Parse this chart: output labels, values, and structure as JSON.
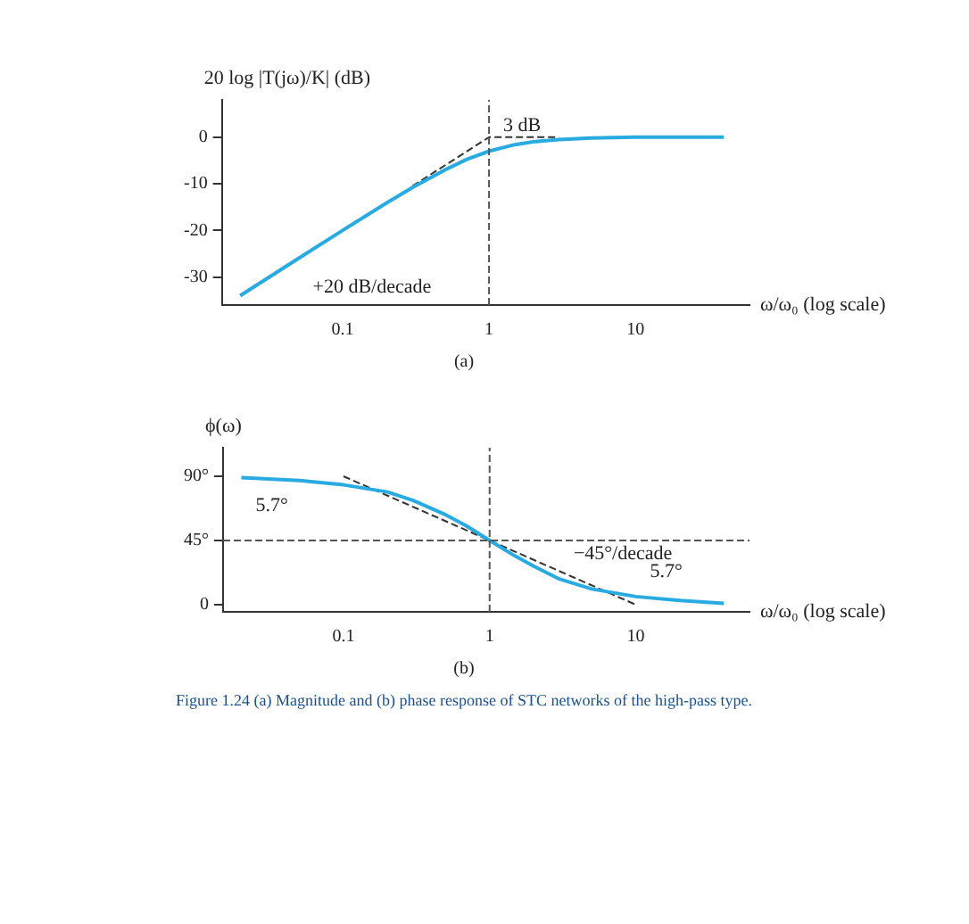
{
  "chart_data": [
    {
      "type": "line",
      "ylabel": "20 log |T(jω)/K| (dB)",
      "xlabel": "ω/ω₀ (log scale)",
      "log": "x",
      "xlim": [
        0.015,
        60
      ],
      "xticks": [
        0.1,
        1,
        10
      ],
      "ylim": [
        -36,
        8
      ],
      "yticks": [
        0,
        -10,
        -20,
        -30
      ],
      "grid": false,
      "legend": false,
      "marker": "none",
      "series": [
        {
          "color": "#29abe2",
          "x": [
            0.02,
            0.05,
            0.1,
            0.2,
            0.3,
            0.5,
            0.7,
            1,
            1.5,
            2,
            3,
            5,
            10,
            20,
            40
          ],
          "values": [
            -34,
            -26,
            -20,
            -14.1,
            -10.8,
            -7,
            -4.8,
            -3,
            -1.6,
            -1,
            -0.5,
            -0.2,
            0,
            0,
            0
          ]
        },
        {
          "color": "#333333",
          "line_style": "dashed",
          "x": [
            0.3,
            1,
            3
          ],
          "values": [
            -10.5,
            0,
            0
          ]
        }
      ],
      "ref_lines": [
        {
          "axis": "x",
          "value": 1,
          "line_style": "dashed",
          "color": "#555555"
        }
      ],
      "annotations": [
        {
          "text": "3 dB",
          "x": 1,
          "y": -3
        },
        {
          "text": "+20 dB/decade",
          "x": 0.05,
          "y": -26
        },
        "(a)"
      ]
    },
    {
      "type": "line",
      "ylabel": "ϕ(ω)",
      "xlabel": "ω/ω₀ (log scale)",
      "log": "x",
      "xlim": [
        0.015,
        60
      ],
      "xticks": [
        0.1,
        1,
        10
      ],
      "ylim": [
        -5,
        110
      ],
      "yticks": [
        0,
        {
          "value": 45,
          "label": "45°"
        },
        {
          "value": 90,
          "label": "90°"
        }
      ],
      "grid": false,
      "legend": false,
      "marker": "none",
      "series": [
        {
          "color": "#29abe2",
          "x": [
            0.02,
            0.05,
            0.1,
            0.2,
            0.3,
            0.5,
            0.7,
            1,
            1.5,
            2,
            3,
            5,
            10,
            20,
            40
          ],
          "values": [
            89,
            87,
            84,
            79,
            73,
            63,
            55,
            45,
            34,
            27,
            18,
            11,
            5.7,
            3,
            1
          ]
        },
        {
          "color": "#333333",
          "line_style": "dashed",
          "x": [
            0.1,
            10
          ],
          "values": [
            90,
            0
          ]
        }
      ],
      "ref_lines": [
        {
          "axis": "x",
          "value": 1,
          "line_style": "dashed",
          "color": "#555555"
        },
        {
          "axis": "y",
          "value": 45,
          "line_style": "dashed",
          "color": "#555555"
        }
      ],
      "annotations": [
        {
          "text": "5.7°",
          "x": 0.02,
          "y": 89
        },
        {
          "text": "−45°/decade",
          "x": 3,
          "y": 18
        },
        {
          "text": "5.7°",
          "x": 10,
          "y": 5.7
        },
        "(b)",
        "Figure 1.24 (a) Magnitude and (b) phase response of STC networks of the high-pass type."
      ]
    }
  ]
}
